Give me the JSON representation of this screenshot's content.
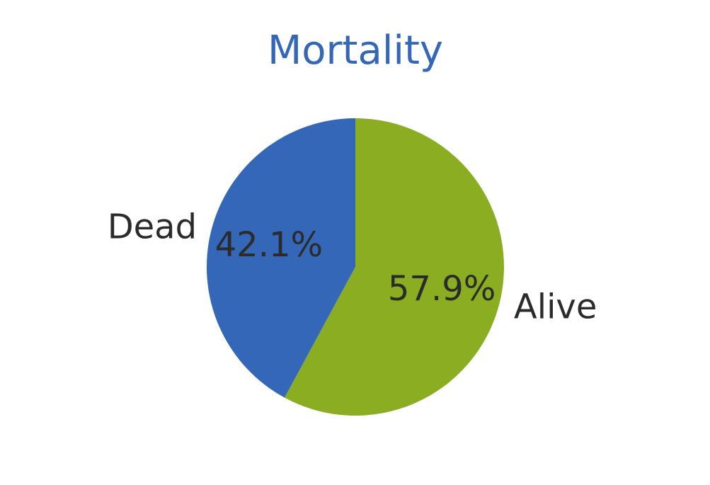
{
  "chart_data": {
    "type": "pie",
    "title": "Mortality",
    "title_color": "#3567b9",
    "start_angle": "top",
    "direction": "clockwise",
    "legend": "none",
    "slices": [
      {
        "label": "Alive",
        "value": 57.9,
        "percent_label": "57.9%",
        "color": "#8aad22"
      },
      {
        "label": "Dead",
        "value": 42.1,
        "percent_label": "42.1%",
        "color": "#3567b9"
      }
    ]
  }
}
